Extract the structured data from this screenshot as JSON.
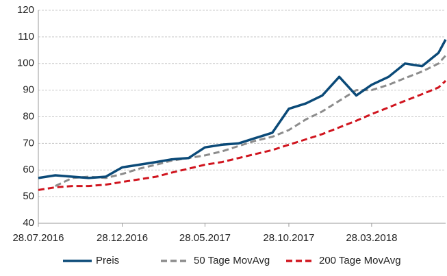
{
  "chart_data": {
    "type": "line",
    "x": [
      "28.07.2016",
      "28.08.2016",
      "28.09.2016",
      "28.10.2016",
      "28.11.2016",
      "28.12.2016",
      "28.01.2017",
      "28.02.2017",
      "28.03.2017",
      "28.04.2017",
      "28.05.2017",
      "28.06.2017",
      "28.07.2017",
      "28.08.2017",
      "28.09.2017",
      "28.10.2017",
      "28.11.2017",
      "28.12.2017",
      "28.01.2018",
      "28.02.2018",
      "28.03.2018",
      "28.04.2018",
      "28.05.2018",
      "28.06.2018",
      "28.07.2018",
      "10.08.2018"
    ],
    "series": [
      {
        "name": "Preis",
        "color": "#0b4a78",
        "dash": false,
        "values": [
          57,
          58,
          57.5,
          57,
          57.5,
          61,
          62,
          63,
          64,
          64.5,
          68.5,
          69.5,
          70,
          72,
          74,
          83,
          85,
          88,
          95,
          88,
          92,
          95,
          100,
          99,
          104,
          109
        ]
      },
      {
        "name": "50 Tage MovAvg",
        "color": "#8c8c8c",
        "dash": true,
        "values": [
          null,
          54,
          57,
          57.5,
          57,
          58.5,
          60.5,
          62,
          63.5,
          64.5,
          65.5,
          67,
          69,
          71,
          72.5,
          75,
          79,
          82,
          86,
          90,
          90,
          92,
          94.5,
          97,
          100,
          103
        ]
      },
      {
        "name": "200 Tage MovAvg",
        "color": "#d0141e",
        "dash": true,
        "values": [
          52.5,
          53.5,
          54,
          54,
          54.5,
          55.5,
          56.5,
          57.5,
          59,
          60.5,
          62,
          63,
          64.5,
          66,
          67.5,
          69.5,
          71.5,
          73.5,
          76,
          78.5,
          81,
          83.5,
          86,
          88.5,
          91,
          93.5
        ]
      }
    ],
    "xlim": [
      "28.07.2016",
      "10.08.2018"
    ],
    "xticks": [
      "28.07.2016",
      "28.12.2016",
      "28.05.2017",
      "28.10.2017",
      "28.03.2018"
    ],
    "ylim": [
      40,
      120
    ],
    "yticks": [
      40,
      50,
      60,
      70,
      80,
      90,
      100,
      110,
      120
    ],
    "grid": true,
    "legend": "bottom"
  }
}
